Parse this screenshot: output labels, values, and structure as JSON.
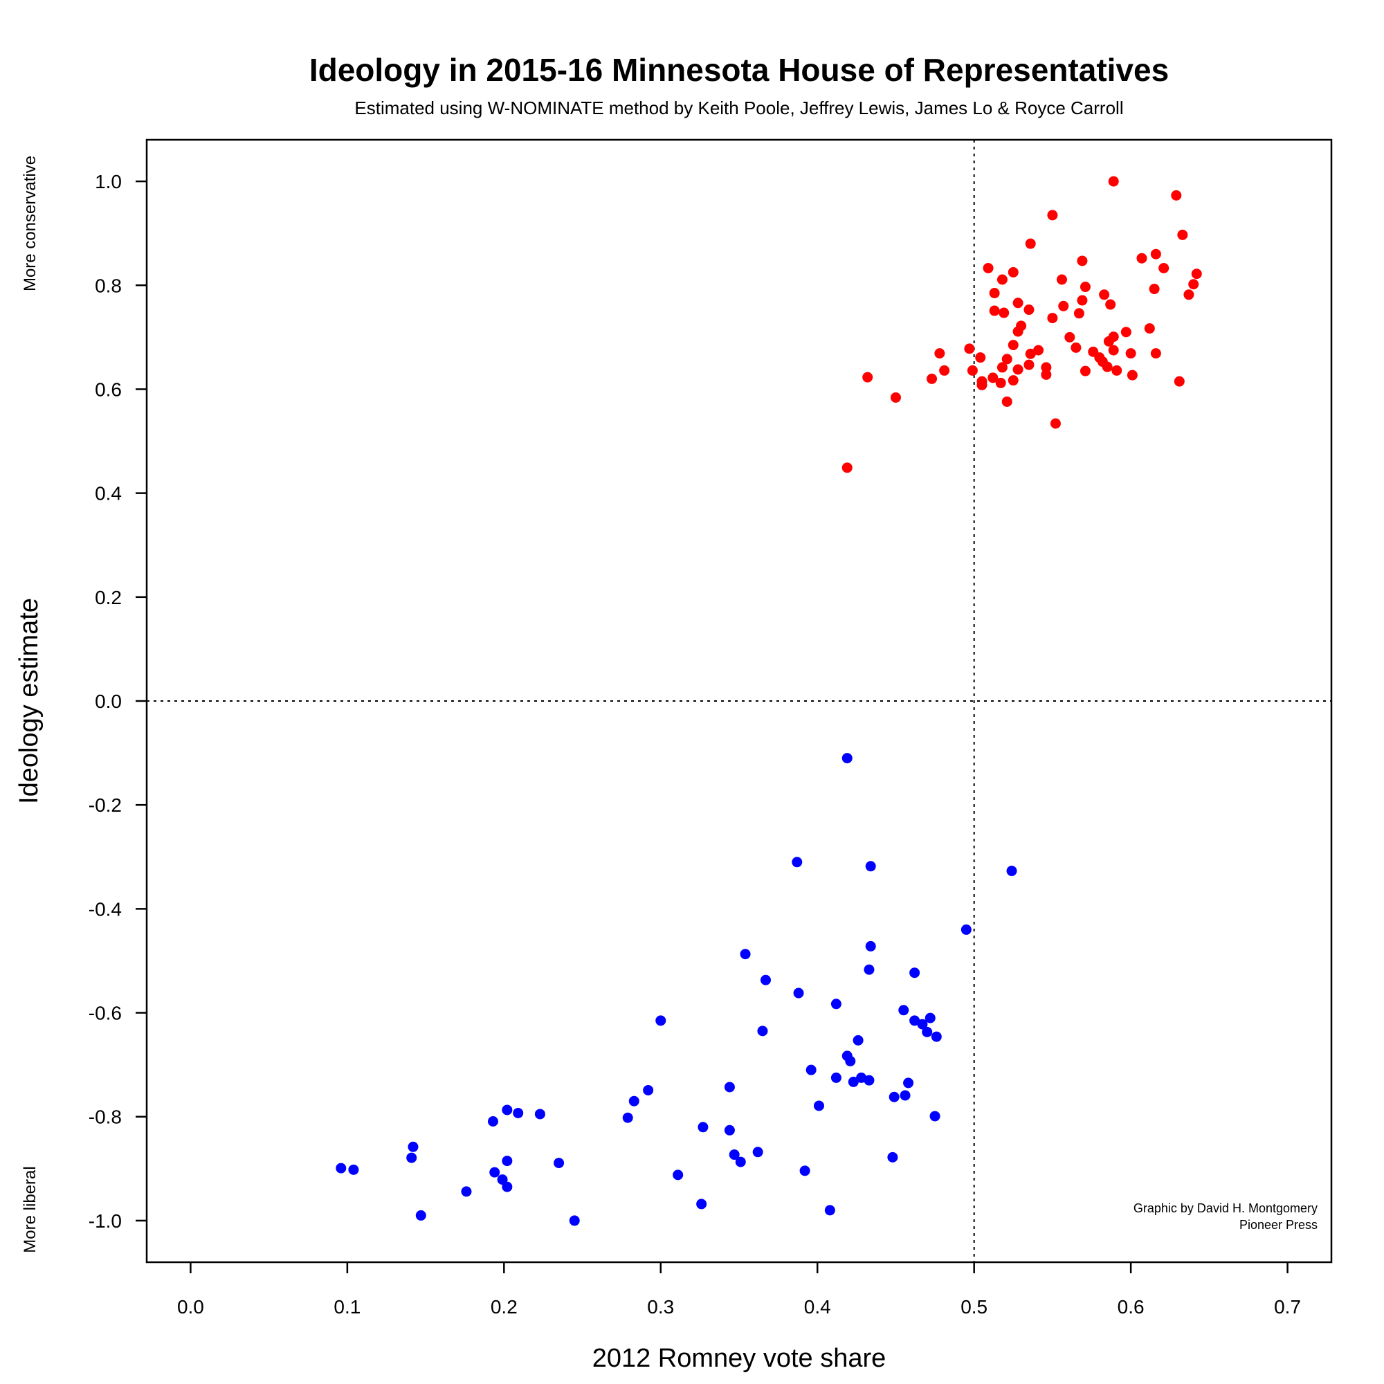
{
  "chart_data": {
    "type": "scatter",
    "title": "Ideology in 2015-16 Minnesota House of Representatives",
    "subtitle": "Estimated using W-NOMINATE method by Keith Poole, Jeffrey Lewis, James Lo & Royce Carroll",
    "xlabel": "2012 Romney vote share",
    "ylabel": "Ideology estimate",
    "xlim": [
      -0.028,
      0.728
    ],
    "ylim": [
      -1.08,
      1.08
    ],
    "x_ticks": [
      "0.0",
      "0.1",
      "0.2",
      "0.3",
      "0.4",
      "0.5",
      "0.6",
      "0.7"
    ],
    "x_tick_values": [
      0.0,
      0.1,
      0.2,
      0.3,
      0.4,
      0.5,
      0.6,
      0.7
    ],
    "y_ticks": [
      "1.0",
      "0.8",
      "0.6",
      "0.4",
      "0.2",
      "0.0",
      "-0.2",
      "-0.4",
      "-0.6",
      "-0.8",
      "-1.0"
    ],
    "y_tick_values": [
      1.0,
      0.8,
      0.6,
      0.4,
      0.2,
      0.0,
      -0.2,
      -0.4,
      -0.6,
      -0.8,
      -1.0
    ],
    "reference_lines": {
      "x": 0.5,
      "y": 0.0,
      "style": "dotted"
    },
    "grid": false,
    "annotations": {
      "top_left": "More conservative",
      "bottom_left": "More liberal",
      "credit_line1": "Graphic by David H. Montgomery",
      "credit_line2": "Pioneer Press"
    },
    "series": [
      {
        "color": "#ff0000",
        "points": [
          [
            0.589,
            1.0
          ],
          [
            0.629,
            0.973
          ],
          [
            0.55,
            0.935
          ],
          [
            0.633,
            0.897
          ],
          [
            0.536,
            0.88
          ],
          [
            0.616,
            0.86
          ],
          [
            0.607,
            0.852
          ],
          [
            0.569,
            0.847
          ],
          [
            0.509,
            0.833
          ],
          [
            0.621,
            0.833
          ],
          [
            0.525,
            0.825
          ],
          [
            0.642,
            0.822
          ],
          [
            0.518,
            0.811
          ],
          [
            0.556,
            0.811
          ],
          [
            0.64,
            0.802
          ],
          [
            0.571,
            0.797
          ],
          [
            0.615,
            0.793
          ],
          [
            0.513,
            0.785
          ],
          [
            0.583,
            0.782
          ],
          [
            0.637,
            0.782
          ],
          [
            0.569,
            0.771
          ],
          [
            0.528,
            0.766
          ],
          [
            0.587,
            0.763
          ],
          [
            0.557,
            0.76
          ],
          [
            0.535,
            0.753
          ],
          [
            0.513,
            0.751
          ],
          [
            0.519,
            0.747
          ],
          [
            0.567,
            0.746
          ],
          [
            0.55,
            0.737
          ],
          [
            0.53,
            0.722
          ],
          [
            0.612,
            0.717
          ],
          [
            0.528,
            0.711
          ],
          [
            0.597,
            0.71
          ],
          [
            0.589,
            0.701
          ],
          [
            0.561,
            0.7
          ],
          [
            0.586,
            0.692
          ],
          [
            0.525,
            0.685
          ],
          [
            0.565,
            0.68
          ],
          [
            0.497,
            0.678
          ],
          [
            0.541,
            0.675
          ],
          [
            0.589,
            0.675
          ],
          [
            0.576,
            0.672
          ],
          [
            0.478,
            0.669
          ],
          [
            0.536,
            0.668
          ],
          [
            0.6,
            0.669
          ],
          [
            0.616,
            0.669
          ],
          [
            0.504,
            0.661
          ],
          [
            0.58,
            0.661
          ],
          [
            0.521,
            0.658
          ],
          [
            0.582,
            0.653
          ],
          [
            0.535,
            0.647
          ],
          [
            0.585,
            0.643
          ],
          [
            0.546,
            0.642
          ],
          [
            0.518,
            0.642
          ],
          [
            0.528,
            0.638
          ],
          [
            0.481,
            0.636
          ],
          [
            0.499,
            0.636
          ],
          [
            0.591,
            0.636
          ],
          [
            0.571,
            0.635
          ],
          [
            0.546,
            0.628
          ],
          [
            0.601,
            0.627
          ],
          [
            0.432,
            0.623
          ],
          [
            0.512,
            0.622
          ],
          [
            0.473,
            0.62
          ],
          [
            0.525,
            0.617
          ],
          [
            0.505,
            0.615
          ],
          [
            0.631,
            0.615
          ],
          [
            0.517,
            0.612
          ],
          [
            0.505,
            0.608
          ],
          [
            0.45,
            0.584
          ],
          [
            0.521,
            0.576
          ],
          [
            0.552,
            0.534
          ],
          [
            0.419,
            0.449
          ]
        ]
      },
      {
        "color": "#0000ff",
        "points": [
          [
            0.419,
            -0.11
          ],
          [
            0.387,
            -0.31
          ],
          [
            0.434,
            -0.318
          ],
          [
            0.524,
            -0.327
          ],
          [
            0.495,
            -0.44
          ],
          [
            0.434,
            -0.472
          ],
          [
            0.354,
            -0.487
          ],
          [
            0.433,
            -0.517
          ],
          [
            0.462,
            -0.523
          ],
          [
            0.367,
            -0.537
          ],
          [
            0.388,
            -0.562
          ],
          [
            0.412,
            -0.583
          ],
          [
            0.455,
            -0.595
          ],
          [
            0.472,
            -0.61
          ],
          [
            0.462,
            -0.615
          ],
          [
            0.3,
            -0.615
          ],
          [
            0.467,
            -0.622
          ],
          [
            0.47,
            -0.637
          ],
          [
            0.365,
            -0.635
          ],
          [
            0.476,
            -0.646
          ],
          [
            0.426,
            -0.653
          ],
          [
            0.419,
            -0.683
          ],
          [
            0.421,
            -0.693
          ],
          [
            0.396,
            -0.71
          ],
          [
            0.412,
            -0.725
          ],
          [
            0.428,
            -0.725
          ],
          [
            0.433,
            -0.73
          ],
          [
            0.423,
            -0.733
          ],
          [
            0.458,
            -0.735
          ],
          [
            0.344,
            -0.743
          ],
          [
            0.292,
            -0.749
          ],
          [
            0.449,
            -0.762
          ],
          [
            0.456,
            -0.759
          ],
          [
            0.283,
            -0.77
          ],
          [
            0.401,
            -0.779
          ],
          [
            0.202,
            -0.787
          ],
          [
            0.209,
            -0.793
          ],
          [
            0.223,
            -0.795
          ],
          [
            0.475,
            -0.799
          ],
          [
            0.279,
            -0.802
          ],
          [
            0.193,
            -0.809
          ],
          [
            0.327,
            -0.82
          ],
          [
            0.344,
            -0.826
          ],
          [
            0.142,
            -0.858
          ],
          [
            0.362,
            -0.868
          ],
          [
            0.347,
            -0.873
          ],
          [
            0.141,
            -0.879
          ],
          [
            0.448,
            -0.878
          ],
          [
            0.202,
            -0.885
          ],
          [
            0.351,
            -0.887
          ],
          [
            0.235,
            -0.889
          ],
          [
            0.096,
            -0.899
          ],
          [
            0.104,
            -0.902
          ],
          [
            0.392,
            -0.904
          ],
          [
            0.194,
            -0.907
          ],
          [
            0.311,
            -0.912
          ],
          [
            0.199,
            -0.921
          ],
          [
            0.202,
            -0.935
          ],
          [
            0.176,
            -0.944
          ],
          [
            0.326,
            -0.968
          ],
          [
            0.408,
            -0.98
          ],
          [
            0.147,
            -0.99
          ],
          [
            0.245,
            -1.0
          ]
        ]
      }
    ]
  }
}
